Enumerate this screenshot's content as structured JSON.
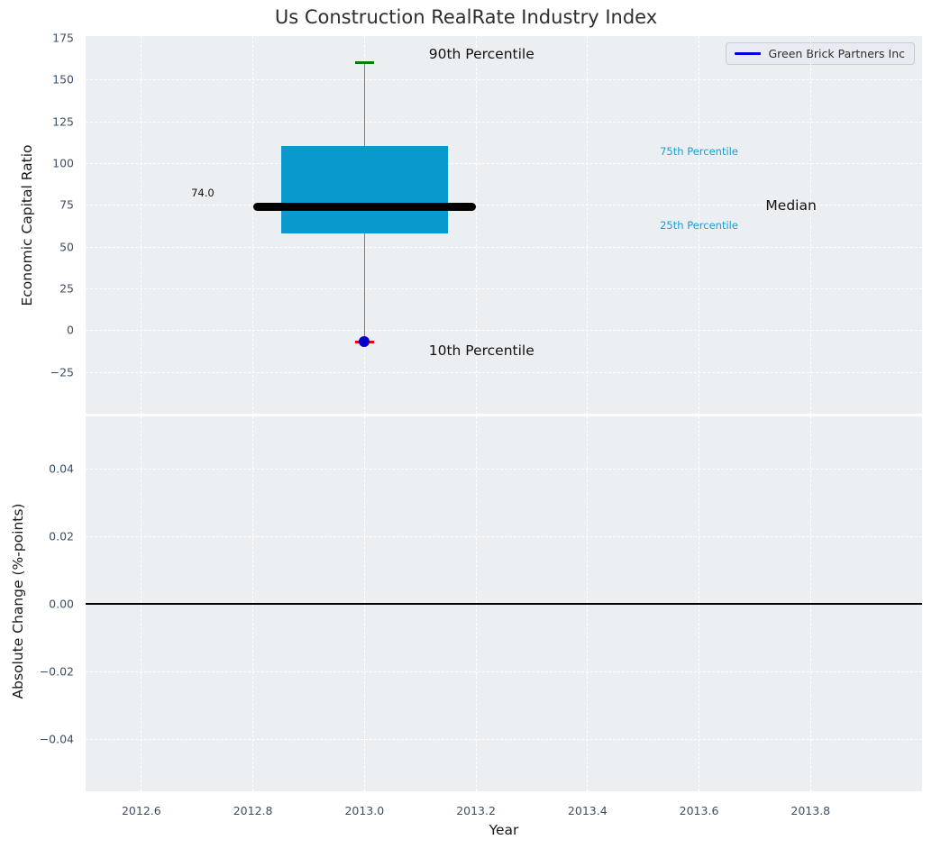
{
  "title": "Us Construction RealRate Industry Index",
  "legend": {
    "series_label": "Green Brick Partners Inc"
  },
  "colors": {
    "plot_background": "#eceff1",
    "box_fill": "#0a99cc",
    "median_line": "#000000",
    "whisker": "#7f7f7f",
    "cap_90th": "#008000",
    "cap_10th": "#ee0000",
    "company_dot": "#0000cc",
    "percentile_label_text": "#1b9ed1",
    "legend_line": "#0000e0",
    "zero_line": "#000000"
  },
  "chart_data": [
    {
      "type": "boxplot",
      "subplot": "top",
      "title": "Us Construction RealRate Industry Index",
      "ylabel": "Economic Capital Ratio",
      "xlim": [
        2012.5,
        2014.0
      ],
      "ylim": [
        -50,
        176
      ],
      "grid": true,
      "yticks": {
        "values": [
          175,
          150,
          125,
          100,
          75,
          50,
          25,
          0,
          -25
        ],
        "labels": [
          "175",
          "150",
          "125",
          "100",
          "75",
          "50",
          "25",
          "0",
          "−25"
        ]
      },
      "xticks": {
        "values": [
          2012.6,
          2012.8,
          2013.0,
          2013.2,
          2013.4,
          2013.6,
          2013.8
        ],
        "labels": [
          "2012.6",
          "2012.8",
          "2013.0",
          "2013.2",
          "2013.4",
          "2013.6",
          "2013.8"
        ]
      },
      "box": {
        "x": 2013.0,
        "p10": -7,
        "p25": 58,
        "median": 74.0,
        "p75": 110,
        "p90": 160,
        "box_width_years": 0.3,
        "median_line_width_years": 0.4,
        "cap_width_years": 0.034,
        "median_value_label": "74.0"
      },
      "company_point": {
        "name": "Green Brick Partners Inc",
        "x": 2013.0,
        "value": -7
      },
      "annotations": [
        {
          "id": "annotation-90th-percentile",
          "text": "90th Percentile",
          "x": 2013.21,
          "y": 165,
          "style": "big-black"
        },
        {
          "id": "annotation-10th-percentile",
          "text": "10th Percentile",
          "x": 2013.21,
          "y": -12,
          "style": "big-black"
        },
        {
          "id": "annotation-75th-percentile",
          "text": "75th Percentile",
          "x": 2013.6,
          "y": 107,
          "style": "small-cyan"
        },
        {
          "id": "annotation-25th-percentile",
          "text": "25th Percentile",
          "x": 2013.6,
          "y": 63,
          "style": "small-cyan"
        },
        {
          "id": "annotation-median",
          "text": "Median",
          "x": 2013.765,
          "y": 74.5,
          "style": "big-black"
        },
        {
          "id": "annotation-median-value",
          "text": "74.0",
          "x": 2012.71,
          "y": 82,
          "style": "small-black"
        }
      ],
      "legend_position": "upper right"
    },
    {
      "type": "line",
      "subplot": "bottom",
      "xlabel": "Year",
      "ylabel": "Absolute Change (%-points)",
      "xlim": [
        2012.5,
        2014.0
      ],
      "ylim": [
        -0.0555,
        0.0555
      ],
      "grid": true,
      "yticks": {
        "values": [
          0.04,
          0.02,
          0,
          -0.02,
          -0.04
        ],
        "labels": [
          "0.04",
          "0.02",
          "0.00",
          "−0.02",
          "−0.04"
        ]
      },
      "zero_line": 0.0,
      "series": []
    }
  ]
}
